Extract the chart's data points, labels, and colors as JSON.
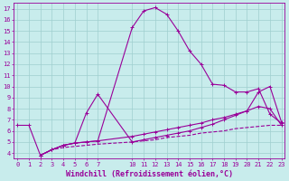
{
  "xlabel": "Windchill (Refroidissement éolien,°C)",
  "bg_color": "#c8ecec",
  "line_color": "#990099",
  "grid_color": "#9fcfcf",
  "series": [
    {
      "x": [
        0,
        1,
        2,
        3,
        4,
        5,
        6,
        7,
        10,
        11,
        12,
        13,
        14,
        15,
        16,
        17,
        18,
        19,
        20,
        21,
        22,
        23
      ],
      "y": [
        6.5,
        6.5,
        3.8,
        4.3,
        4.7,
        4.9,
        5.0,
        5.1,
        15.3,
        16.8,
        17.1,
        16.5,
        15.0,
        13.2,
        12.0,
        10.2,
        10.1,
        9.5,
        9.5,
        9.8,
        7.5,
        6.7
      ],
      "marker": true,
      "lw": 0.8
    },
    {
      "x": [
        2,
        3,
        4,
        5,
        6,
        7,
        10,
        11,
        12,
        13,
        14,
        15,
        16,
        17,
        18,
        19,
        20,
        21,
        22,
        23
      ],
      "y": [
        3.8,
        4.3,
        4.7,
        4.9,
        7.6,
        9.3,
        5.0,
        5.2,
        5.4,
        5.6,
        5.8,
        6.0,
        6.3,
        6.6,
        7.0,
        7.4,
        7.8,
        8.2,
        8.0,
        6.5
      ],
      "marker": true,
      "lw": 0.8
    },
    {
      "x": [
        2,
        3,
        4,
        5,
        6,
        7,
        10,
        11,
        12,
        13,
        14,
        15,
        16,
        17,
        18,
        19,
        20,
        21,
        22,
        23
      ],
      "y": [
        3.8,
        4.3,
        4.7,
        4.9,
        5.0,
        5.1,
        5.5,
        5.7,
        5.9,
        6.1,
        6.3,
        6.5,
        6.7,
        7.0,
        7.2,
        7.5,
        7.8,
        9.5,
        10.0,
        6.8
      ],
      "marker": true,
      "lw": 0.8
    },
    {
      "x": [
        2,
        3,
        4,
        5,
        6,
        7,
        10,
        11,
        12,
        13,
        14,
        15,
        16,
        17,
        18,
        19,
        20,
        21,
        22,
        23
      ],
      "y": [
        3.8,
        4.3,
        4.5,
        4.6,
        4.7,
        4.8,
        5.0,
        5.1,
        5.2,
        5.4,
        5.5,
        5.6,
        5.8,
        5.9,
        6.0,
        6.2,
        6.3,
        6.4,
        6.5,
        6.5
      ],
      "marker": false,
      "lw": 0.8,
      "dashed": true
    }
  ],
  "xlim": [
    -0.3,
    23.3
  ],
  "ylim": [
    3.5,
    17.5
  ],
  "yticks": [
    4,
    5,
    6,
    7,
    8,
    9,
    10,
    11,
    12,
    13,
    14,
    15,
    16,
    17
  ],
  "xticks": [
    0,
    1,
    2,
    3,
    4,
    5,
    6,
    7,
    10,
    11,
    12,
    13,
    14,
    15,
    16,
    17,
    18,
    19,
    20,
    21,
    22,
    23
  ],
  "tick_fontsize": 5.0,
  "xlabel_fontsize": 6.0
}
